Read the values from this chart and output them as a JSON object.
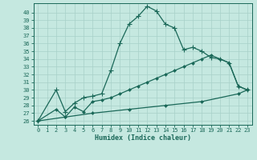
{
  "xlabel": "Humidex (Indice chaleur)",
  "bg_color": "#c5e8e0",
  "grid_color": "#a8d0c8",
  "line_color": "#1a6858",
  "spine_color": "#1a6858",
  "xlim": [
    -0.5,
    23.5
  ],
  "ylim": [
    25.5,
    41.2
  ],
  "xticks": [
    0,
    1,
    2,
    3,
    4,
    5,
    6,
    7,
    8,
    9,
    10,
    11,
    12,
    13,
    14,
    15,
    16,
    17,
    18,
    19,
    20,
    21,
    22,
    23
  ],
  "yticks": [
    26,
    27,
    28,
    29,
    30,
    31,
    32,
    33,
    34,
    35,
    36,
    37,
    38,
    39,
    40
  ],
  "curve1_x": [
    0,
    2,
    3,
    4,
    5,
    6,
    7,
    8,
    9,
    10,
    11,
    12,
    13,
    14,
    15,
    16,
    17,
    18,
    19,
    20,
    21,
    22,
    23
  ],
  "curve1_y": [
    26.0,
    30.0,
    27.2,
    28.3,
    29.0,
    29.2,
    29.5,
    32.5,
    36.0,
    38.5,
    39.5,
    40.8,
    40.2,
    38.5,
    38.0,
    35.2,
    35.5,
    35.0,
    34.2,
    34.0,
    33.5,
    30.5,
    30.0
  ],
  "curve2_x": [
    0,
    2,
    3,
    4,
    5,
    6,
    7,
    8,
    9,
    10,
    11,
    12,
    13,
    14,
    15,
    16,
    17,
    18,
    19,
    20,
    21,
    22,
    23
  ],
  "curve2_y": [
    26.0,
    27.5,
    26.5,
    27.8,
    27.2,
    28.5,
    28.7,
    29.0,
    29.5,
    30.0,
    30.5,
    31.0,
    31.5,
    32.0,
    32.5,
    33.0,
    33.5,
    34.0,
    34.5,
    34.0,
    33.5,
    30.5,
    30.0
  ],
  "curve3_x": [
    0,
    3,
    6,
    10,
    14,
    18,
    22,
    23
  ],
  "curve3_y": [
    26.0,
    26.5,
    27.0,
    27.5,
    28.0,
    28.5,
    29.5,
    30.0
  ],
  "tick_fontsize": 5.0,
  "xlabel_fontsize": 6.0,
  "marker_size": 2.5,
  "linewidth": 0.9
}
